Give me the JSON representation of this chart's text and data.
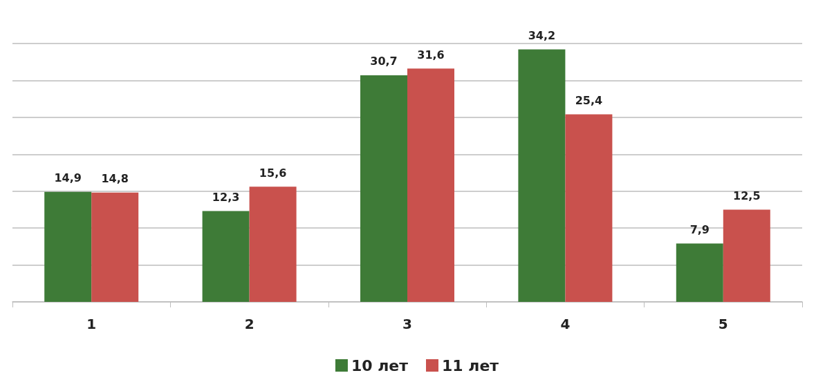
{
  "chart_data": {
    "type": "bar",
    "categories": [
      "1",
      "2",
      "3",
      "4",
      "5"
    ],
    "series": [
      {
        "name": "10 лет",
        "color": "#3e7b37",
        "values": [
          14.9,
          12.3,
          30.7,
          34.2,
          7.9
        ],
        "value_labels": [
          "14,9",
          "12,3",
          "30,7",
          "34,2",
          "7,9"
        ]
      },
      {
        "name": "11 лет",
        "color": "#c9514d",
        "values": [
          14.8,
          15.6,
          31.6,
          25.4,
          12.5
        ],
        "value_labels": [
          "14,8",
          "15,6",
          "31,6",
          "25,4",
          "12,5"
        ]
      }
    ],
    "ylim": [
      0,
      35
    ],
    "yticks": [
      {
        "value": 0,
        "label": null
      },
      {
        "value": 5,
        "label": null
      },
      {
        "value": 10,
        "label": null
      },
      {
        "value": 15,
        "label": null
      },
      {
        "value": 20,
        "label": null
      },
      {
        "value": 25,
        "label": null
      },
      {
        "value": 30,
        "label": null
      },
      {
        "value": 35,
        "label": null
      }
    ],
    "tick_labels": "x",
    "grid": "y",
    "legend": "bottom"
  }
}
